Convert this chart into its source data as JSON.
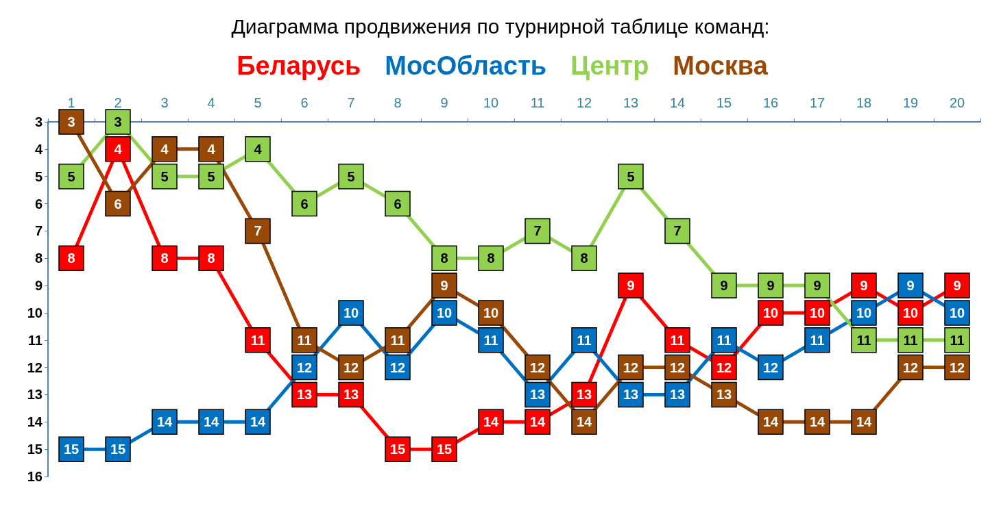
{
  "chart_data": {
    "type": "line",
    "title": "Диаграмма продвижения по турнирной таблице команд:",
    "categories": [
      "1",
      "2",
      "3",
      "4",
      "5",
      "6",
      "7",
      "8",
      "9",
      "10",
      "11",
      "12",
      "13",
      "14",
      "15",
      "16",
      "17",
      "18",
      "19",
      "20"
    ],
    "series": [
      {
        "name": "Беларусь",
        "color": "#ff0000",
        "values": [
          8,
          4,
          8,
          8,
          11,
          13,
          13,
          15,
          15,
          14,
          14,
          13,
          9,
          11,
          12,
          10,
          10,
          9,
          10,
          9
        ]
      },
      {
        "name": "МосОбласть",
        "color": "#0070c0",
        "values": [
          15,
          15,
          14,
          14,
          14,
          12,
          10,
          12,
          10,
          11,
          13,
          11,
          13,
          13,
          11,
          12,
          11,
          10,
          9,
          10
        ]
      },
      {
        "name": "Центр",
        "color": "#92d050",
        "values": [
          5,
          3,
          5,
          5,
          4,
          6,
          5,
          6,
          8,
          8,
          7,
          8,
          5,
          7,
          9,
          9,
          9,
          11,
          11,
          11
        ]
      },
      {
        "name": "Москва",
        "color": "#984807",
        "values": [
          3,
          6,
          4,
          4,
          7,
          11,
          12,
          11,
          9,
          10,
          12,
          14,
          12,
          12,
          13,
          14,
          14,
          14,
          12,
          12
        ]
      }
    ],
    "ylim": [
      16,
      3
    ],
    "yticks": [
      3,
      4,
      5,
      6,
      7,
      8,
      9,
      10,
      11,
      12,
      13,
      14,
      15,
      16
    ],
    "marker": "square",
    "data_labels": true,
    "legend": "top",
    "grid": false
  }
}
